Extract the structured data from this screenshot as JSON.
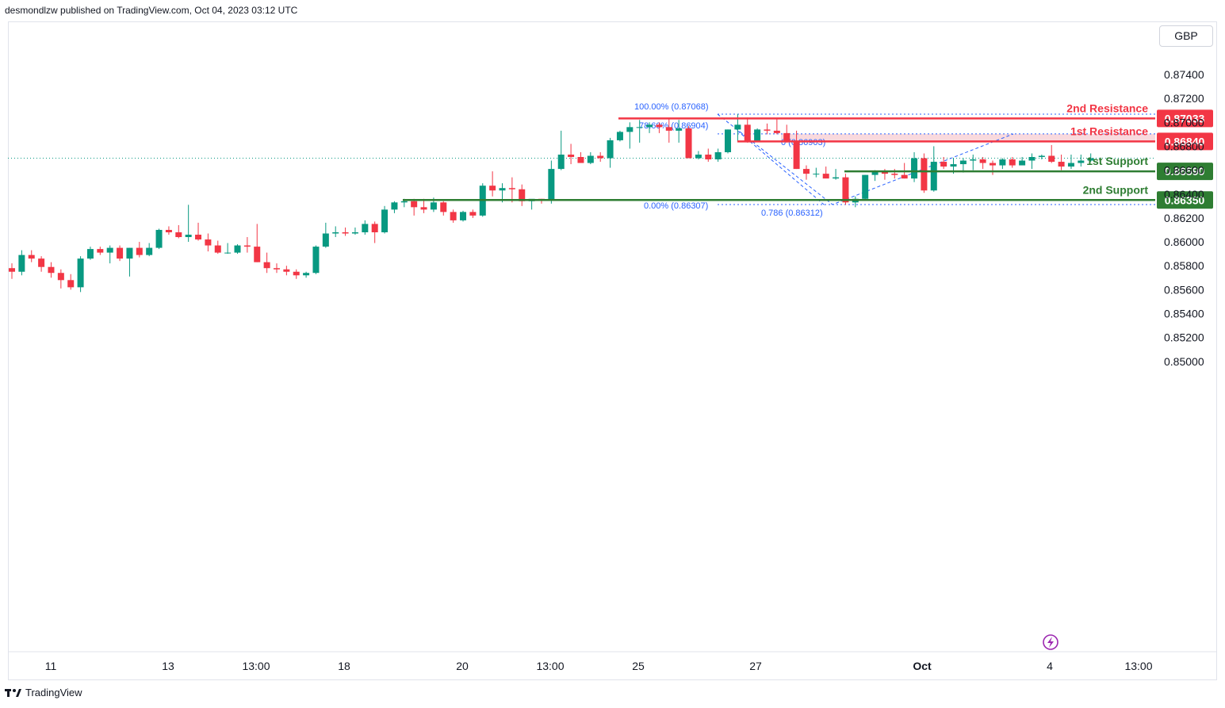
{
  "header": {
    "publisher": "desmondlzw published on TradingView.com, Oct 04, 2023 03:12 UTC"
  },
  "currency_button": "GBP",
  "footer": {
    "brand": "TradingView"
  },
  "colors": {
    "up": "#089981",
    "down": "#f23645",
    "resistance": "#f23645",
    "support": "#2e7d32",
    "fib": "#2962ff",
    "zone": "#f8d0d4"
  },
  "chart_data": {
    "type": "candlestick",
    "y_axis": {
      "min": 0.85,
      "max": 0.874,
      "ticks": [
        "0.87400",
        "0.87200",
        "0.87000",
        "0.86800",
        "0.86600",
        "0.86400",
        "0.86200",
        "0.86000",
        "0.85800",
        "0.85600",
        "0.85400",
        "0.85200",
        "0.85000"
      ]
    },
    "x_axis": {
      "ticks": [
        {
          "label": "11",
          "i": 4
        },
        {
          "label": "13",
          "i": 17
        },
        {
          "label": "13:00",
          "i": 26
        },
        {
          "label": "18",
          "i": 35
        },
        {
          "label": "20",
          "i": 48
        },
        {
          "label": "13:00",
          "i": 57
        },
        {
          "label": "25",
          "i": 66
        },
        {
          "label": "27",
          "i": 79
        },
        {
          "label": "Oct",
          "i": 97
        },
        {
          "label": "4",
          "i": 110
        },
        {
          "label": "13:00",
          "i": 119
        }
      ]
    },
    "levels": [
      {
        "name": "2nd Resistance",
        "value": "0.87033",
        "kind": "resistance",
        "y": 0.87033
      },
      {
        "name": "1st Resistance",
        "value": "0.86840",
        "kind": "resistance",
        "y": 0.8684
      },
      {
        "name": "1st Support",
        "value": "0.86590",
        "kind": "support",
        "y": 0.8659
      },
      {
        "name": "2nd Support",
        "value": "0.86350",
        "kind": "support",
        "y": 0.8635
      }
    ],
    "fib_labels": [
      {
        "text": "100.00% (0.87068)",
        "y": 0.87068
      },
      {
        "text": "78.60% (0.86904)",
        "y": 0.86904
      },
      {
        "text": "0 (0.86903)",
        "y": 0.86903
      },
      {
        "text": "0.00% (0.86307)",
        "y": 0.86307
      },
      {
        "text": "0.786 (0.86312)",
        "y": 0.86312
      }
    ],
    "last_price": 0.867,
    "candles": [
      [
        0.8578,
        0.8582,
        0.8569,
        0.8575
      ],
      [
        0.8575,
        0.8593,
        0.8572,
        0.8589
      ],
      [
        0.8589,
        0.8593,
        0.8583,
        0.8586
      ],
      [
        0.8586,
        0.8588,
        0.8575,
        0.8579
      ],
      [
        0.8579,
        0.8583,
        0.857,
        0.8574
      ],
      [
        0.8574,
        0.8577,
        0.8561,
        0.8568
      ],
      [
        0.8568,
        0.8573,
        0.856,
        0.8562
      ],
      [
        0.8562,
        0.8588,
        0.8558,
        0.8586
      ],
      [
        0.8586,
        0.8596,
        0.8585,
        0.8594
      ],
      [
        0.8594,
        0.8596,
        0.8589,
        0.8591
      ],
      [
        0.8591,
        0.8597,
        0.8582,
        0.8595
      ],
      [
        0.8595,
        0.8597,
        0.8584,
        0.8586
      ],
      [
        0.8586,
        0.8595,
        0.8571,
        0.8595
      ],
      [
        0.8595,
        0.86,
        0.8587,
        0.8589
      ],
      [
        0.8589,
        0.8599,
        0.8588,
        0.8595
      ],
      [
        0.8595,
        0.8611,
        0.8594,
        0.861
      ],
      [
        0.861,
        0.8613,
        0.8606,
        0.8608
      ],
      [
        0.8608,
        0.8614,
        0.8603,
        0.8604
      ],
      [
        0.8604,
        0.8631,
        0.86,
        0.8606
      ],
      [
        0.8606,
        0.8616,
        0.8601,
        0.8602
      ],
      [
        0.8602,
        0.8607,
        0.8592,
        0.8597
      ],
      [
        0.8597,
        0.8601,
        0.859,
        0.8591
      ],
      [
        0.8591,
        0.8599,
        0.859,
        0.8591
      ],
      [
        0.8591,
        0.8598,
        0.859,
        0.8597
      ],
      [
        0.8597,
        0.8604,
        0.8591,
        0.8596
      ],
      [
        0.8596,
        0.8615,
        0.8583,
        0.8583
      ],
      [
        0.8583,
        0.8591,
        0.8574,
        0.8578
      ],
      [
        0.8578,
        0.8582,
        0.8574,
        0.8577
      ],
      [
        0.8577,
        0.858,
        0.8572,
        0.8575
      ],
      [
        0.8575,
        0.8577,
        0.8569,
        0.8572
      ],
      [
        0.8572,
        0.8575,
        0.857,
        0.8574
      ],
      [
        0.8574,
        0.8597,
        0.8573,
        0.8596
      ],
      [
        0.8596,
        0.8616,
        0.8595,
        0.8607
      ],
      [
        0.8607,
        0.8613,
        0.8604,
        0.8608
      ],
      [
        0.8608,
        0.8612,
        0.8605,
        0.8607
      ],
      [
        0.8607,
        0.8612,
        0.8606,
        0.8608
      ],
      [
        0.8608,
        0.8618,
        0.8606,
        0.8615
      ],
      [
        0.8615,
        0.8617,
        0.8599,
        0.8608
      ],
      [
        0.8608,
        0.863,
        0.8607,
        0.8627
      ],
      [
        0.8627,
        0.8634,
        0.8624,
        0.8633
      ],
      [
        0.8633,
        0.8636,
        0.8629,
        0.8634
      ],
      [
        0.8634,
        0.8636,
        0.8622,
        0.8629
      ],
      [
        0.8629,
        0.8636,
        0.8624,
        0.8627
      ],
      [
        0.8627,
        0.8637,
        0.8625,
        0.8633
      ],
      [
        0.8633,
        0.8634,
        0.8622,
        0.8625
      ],
      [
        0.8625,
        0.8627,
        0.8616,
        0.8618
      ],
      [
        0.8618,
        0.8626,
        0.8617,
        0.8625
      ],
      [
        0.8625,
        0.8627,
        0.862,
        0.8622
      ],
      [
        0.8622,
        0.8649,
        0.8621,
        0.8647
      ],
      [
        0.8647,
        0.8659,
        0.8638,
        0.8643
      ],
      [
        0.8643,
        0.8649,
        0.8633,
        0.8645
      ],
      [
        0.8645,
        0.8654,
        0.8633,
        0.8644
      ],
      [
        0.8644,
        0.8648,
        0.863,
        0.8634
      ],
      [
        0.8634,
        0.8635,
        0.8627,
        0.8636
      ],
      [
        0.8636,
        0.8636,
        0.8632,
        0.8635
      ],
      [
        0.8635,
        0.8668,
        0.8632,
        0.8661
      ],
      [
        0.8661,
        0.8693,
        0.866,
        0.8673
      ],
      [
        0.8673,
        0.8682,
        0.8665,
        0.8671
      ],
      [
        0.8671,
        0.8675,
        0.8667,
        0.8666
      ],
      [
        0.8666,
        0.8675,
        0.8665,
        0.8672
      ],
      [
        0.8672,
        0.8675,
        0.8667,
        0.867
      ],
      [
        0.867,
        0.8687,
        0.8662,
        0.8685
      ],
      [
        0.8685,
        0.8693,
        0.8684,
        0.8692
      ],
      [
        0.8692,
        0.87,
        0.8678,
        0.8696
      ],
      [
        0.8696,
        0.8702,
        0.8683,
        0.8696
      ],
      [
        0.8696,
        0.87,
        0.8691,
        0.8698
      ],
      [
        0.8698,
        0.87,
        0.8691,
        0.8696
      ],
      [
        0.8696,
        0.8703,
        0.8683,
        0.8693
      ],
      [
        0.8693,
        0.8702,
        0.8683,
        0.8695
      ],
      [
        0.8695,
        0.8697,
        0.867,
        0.867
      ],
      [
        0.867,
        0.8676,
        0.8669,
        0.8673
      ],
      [
        0.8673,
        0.8678,
        0.8667,
        0.8669
      ],
      [
        0.8669,
        0.8678,
        0.8667,
        0.8675
      ],
      [
        0.8675,
        0.8694,
        0.8674,
        0.8694
      ],
      [
        0.8694,
        0.8707,
        0.8684,
        0.8698
      ],
      [
        0.8698,
        0.8704,
        0.8683,
        0.8684
      ],
      [
        0.8684,
        0.8695,
        0.8684,
        0.8694
      ],
      [
        0.8694,
        0.8699,
        0.869,
        0.8693
      ],
      [
        0.8693,
        0.8703,
        0.869,
        0.8691
      ],
      [
        0.8691,
        0.8698,
        0.8683,
        0.8684
      ],
      [
        0.8684,
        0.8693,
        0.8661,
        0.8661
      ],
      [
        0.8661,
        0.8664,
        0.8652,
        0.8657
      ],
      [
        0.8657,
        0.8662,
        0.8654,
        0.8657
      ],
      [
        0.8657,
        0.8663,
        0.8654,
        0.8653
      ],
      [
        0.8653,
        0.8661,
        0.8652,
        0.8654
      ],
      [
        0.8654,
        0.8657,
        0.8631,
        0.8633
      ],
      [
        0.8633,
        0.8638,
        0.8629,
        0.8636
      ],
      [
        0.8636,
        0.8656,
        0.8635,
        0.8656
      ],
      [
        0.8656,
        0.866,
        0.8651,
        0.8659
      ],
      [
        0.8659,
        0.8661,
        0.8652,
        0.8657
      ],
      [
        0.8657,
        0.8661,
        0.8653,
        0.8656
      ],
      [
        0.8656,
        0.8666,
        0.8653,
        0.8653
      ],
      [
        0.8653,
        0.8675,
        0.865,
        0.867
      ],
      [
        0.867,
        0.8674,
        0.8641,
        0.8643
      ],
      [
        0.8643,
        0.868,
        0.8642,
        0.8667
      ],
      [
        0.8667,
        0.8671,
        0.8661,
        0.8663
      ],
      [
        0.8663,
        0.867,
        0.8657,
        0.8665
      ],
      [
        0.8665,
        0.867,
        0.8658,
        0.8668
      ],
      [
        0.8668,
        0.8673,
        0.866,
        0.8669
      ],
      [
        0.8669,
        0.8671,
        0.8661,
        0.8666
      ],
      [
        0.8666,
        0.8668,
        0.8656,
        0.8664
      ],
      [
        0.8664,
        0.867,
        0.8661,
        0.8669
      ],
      [
        0.8669,
        0.8671,
        0.8662,
        0.8664
      ],
      [
        0.8664,
        0.8671,
        0.8665,
        0.8668
      ],
      [
        0.8668,
        0.8674,
        0.8661,
        0.8671
      ],
      [
        0.8671,
        0.8673,
        0.8669,
        0.8672
      ],
      [
        0.8672,
        0.8681,
        0.8666,
        0.8667
      ],
      [
        0.8667,
        0.8673,
        0.866,
        0.8663
      ],
      [
        0.8663,
        0.8673,
        0.8661,
        0.8666
      ],
      [
        0.8666,
        0.8673,
        0.8663,
        0.8668
      ],
      [
        0.8668,
        0.8674,
        0.8667,
        0.867
      ]
    ]
  }
}
